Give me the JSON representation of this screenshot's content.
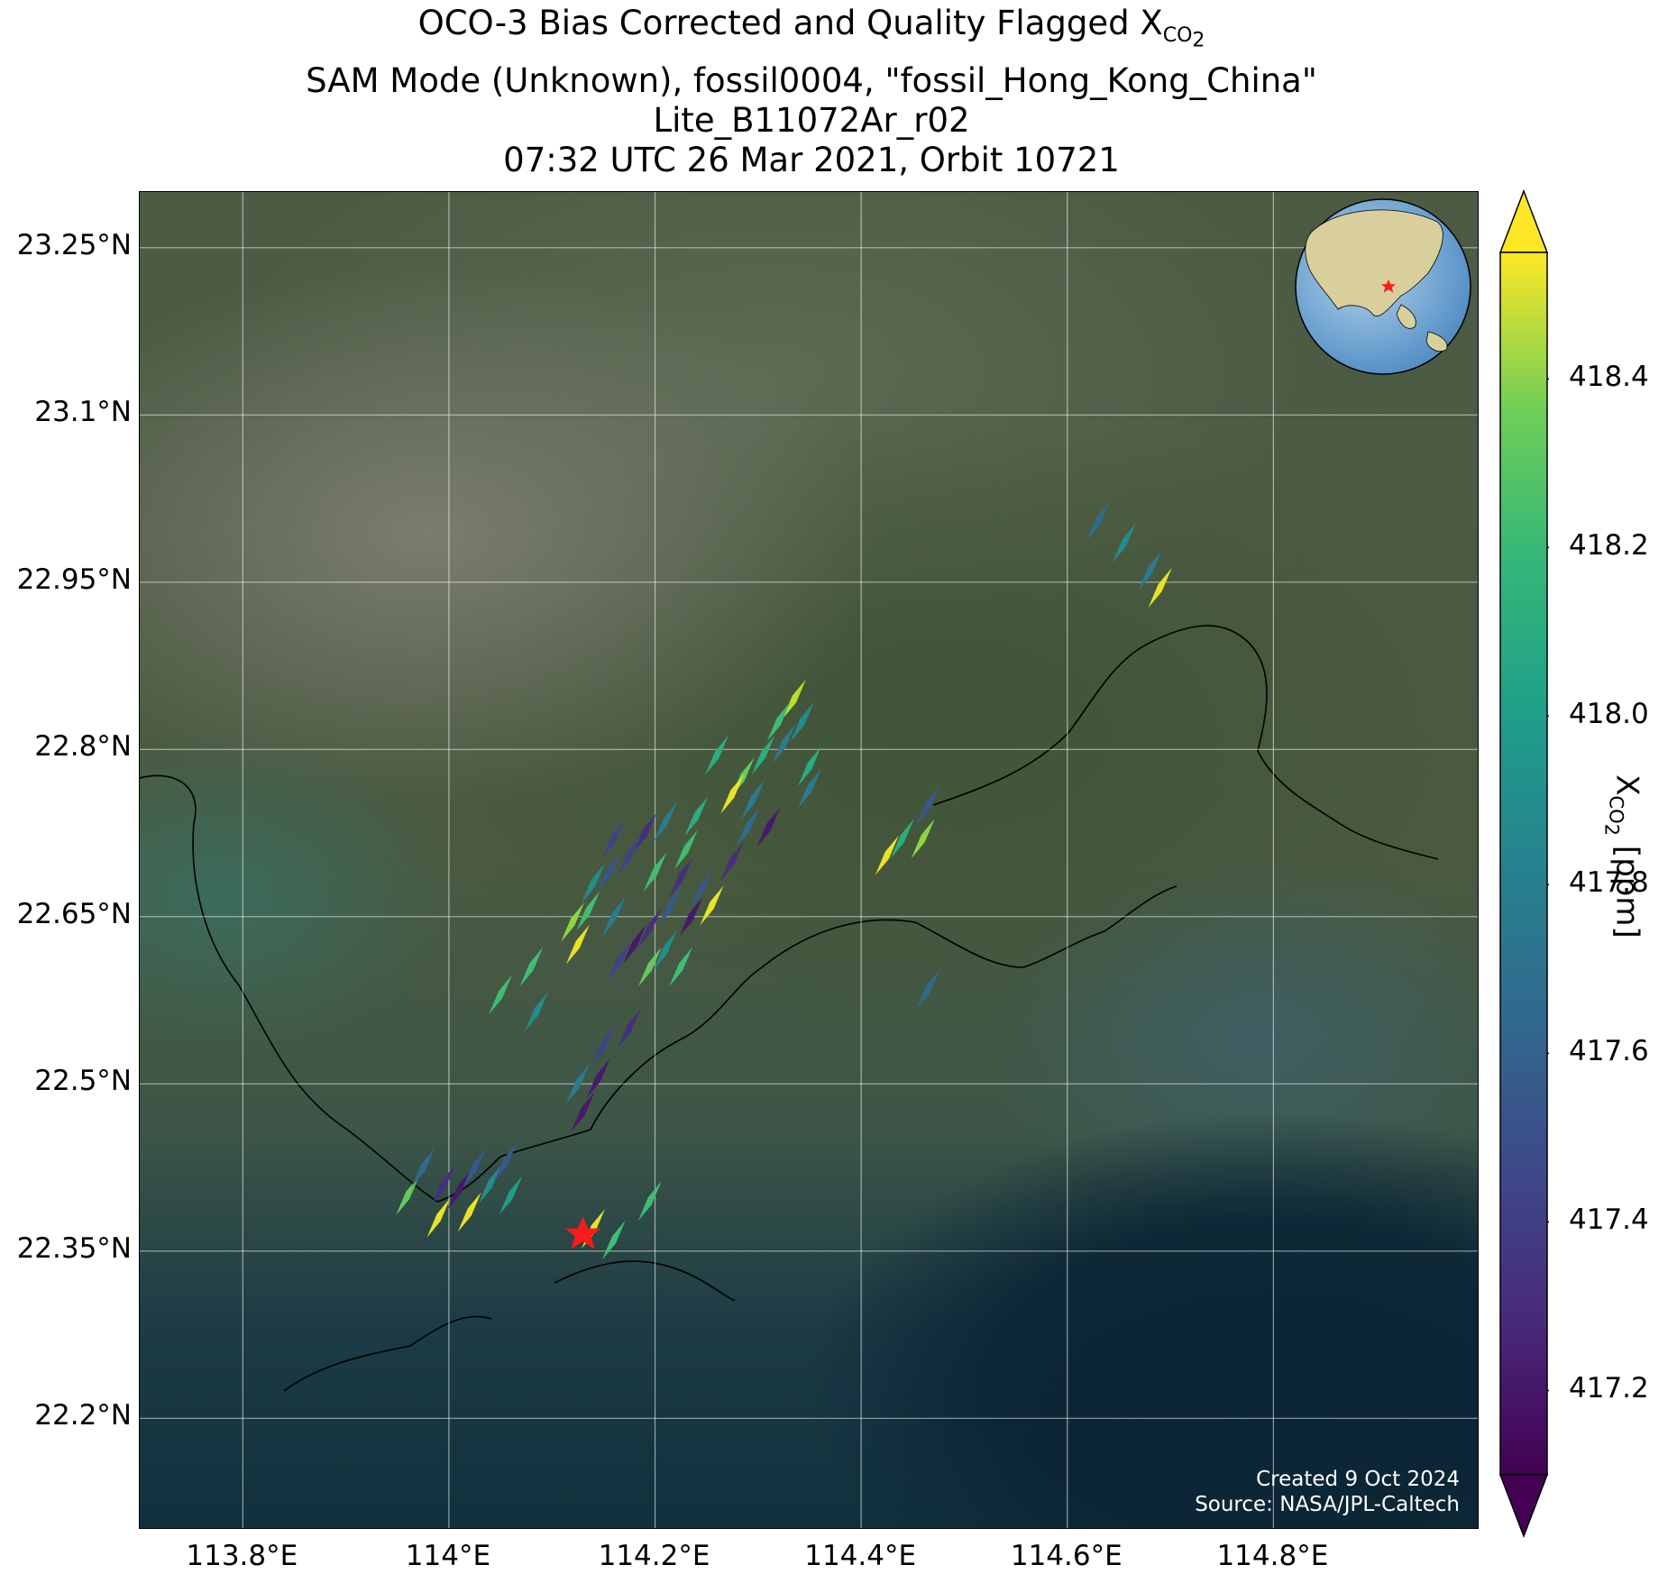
{
  "title": {
    "line1_prefix": "OCO-3 Bias Corrected and Quality Flagged X",
    "line1_sub": "CO",
    "line1_sub2": "2",
    "line2": "SAM Mode (Unknown), fossil0004, \"fossil_Hong_Kong_China\"",
    "line3": "Lite_B11072Ar_r02",
    "line4": "07:32 UTC 26 Mar 2021, Orbit 10721"
  },
  "axes": {
    "lon_range": [
      113.7,
      115.0
    ],
    "lat_range": [
      22.1,
      23.3
    ],
    "xticks": [
      "113.8°E",
      "114°E",
      "114.2°E",
      "114.4°E",
      "114.6°E",
      "114.8°E"
    ],
    "xtick_values": [
      113.8,
      114.0,
      114.2,
      114.4,
      114.6,
      114.8
    ],
    "yticks": [
      "23.25°N",
      "23.1°N",
      "22.95°N",
      "22.8°N",
      "22.65°N",
      "22.5°N",
      "22.35°N",
      "22.2°N"
    ],
    "ytick_values": [
      23.25,
      23.1,
      22.95,
      22.8,
      22.65,
      22.5,
      22.35,
      22.2
    ]
  },
  "target": {
    "name": "fossil_Hong_Kong_China",
    "lon": 114.13,
    "lat": 22.365,
    "marker": "red-star"
  },
  "colorbar": {
    "label_prefix": "X",
    "label_sub": "CO",
    "label_sub2": "2",
    "label_suffix": " [ppm]",
    "range": [
      417.1,
      418.55
    ],
    "ticks": [
      "418.4",
      "418.2",
      "418.0",
      "417.8",
      "417.6",
      "417.4",
      "417.2"
    ],
    "tick_values": [
      418.4,
      418.2,
      418.0,
      417.8,
      417.6,
      417.4,
      417.2
    ],
    "colormap": "viridis",
    "extend": "both"
  },
  "credits": {
    "line1": "Created 9 Oct 2024",
    "line2": "Source: NASA/JPL-Caltech"
  },
  "inset": {
    "type": "globe",
    "marker": "red-star"
  },
  "soundings": [
    {
      "lon": 114.335,
      "lat": 22.845,
      "v": 418.4
    },
    {
      "lon": 114.32,
      "lat": 22.825,
      "v": 418.1
    },
    {
      "lon": 114.343,
      "lat": 22.825,
      "v": 417.8
    },
    {
      "lon": 114.325,
      "lat": 22.805,
      "v": 417.7
    },
    {
      "lon": 114.305,
      "lat": 22.795,
      "v": 418.0
    },
    {
      "lon": 114.35,
      "lat": 22.785,
      "v": 418.0
    },
    {
      "lon": 114.35,
      "lat": 22.765,
      "v": 417.7
    },
    {
      "lon": 114.31,
      "lat": 22.73,
      "v": 417.2
    },
    {
      "lon": 114.285,
      "lat": 22.775,
      "v": 418.2
    },
    {
      "lon": 114.275,
      "lat": 22.76,
      "v": 418.5
    },
    {
      "lon": 114.26,
      "lat": 22.795,
      "v": 418.0
    },
    {
      "lon": 114.295,
      "lat": 22.755,
      "v": 417.7
    },
    {
      "lon": 114.29,
      "lat": 22.73,
      "v": 417.6
    },
    {
      "lon": 114.275,
      "lat": 22.7,
      "v": 417.3
    },
    {
      "lon": 114.255,
      "lat": 22.66,
      "v": 418.5
    },
    {
      "lon": 114.24,
      "lat": 22.74,
      "v": 418.0
    },
    {
      "lon": 114.23,
      "lat": 22.71,
      "v": 418.1
    },
    {
      "lon": 114.21,
      "lat": 22.735,
      "v": 417.7
    },
    {
      "lon": 114.19,
      "lat": 22.725,
      "v": 417.3
    },
    {
      "lon": 114.175,
      "lat": 22.705,
      "v": 417.4
    },
    {
      "lon": 114.155,
      "lat": 22.69,
      "v": 417.5
    },
    {
      "lon": 114.16,
      "lat": 22.72,
      "v": 417.4
    },
    {
      "lon": 114.14,
      "lat": 22.68,
      "v": 417.8
    },
    {
      "lon": 114.135,
      "lat": 22.655,
      "v": 418.1
    },
    {
      "lon": 114.125,
      "lat": 22.625,
      "v": 418.5
    },
    {
      "lon": 114.12,
      "lat": 22.645,
      "v": 418.3
    },
    {
      "lon": 114.16,
      "lat": 22.65,
      "v": 417.7
    },
    {
      "lon": 114.2,
      "lat": 22.69,
      "v": 418.1
    },
    {
      "lon": 114.225,
      "lat": 22.685,
      "v": 417.3
    },
    {
      "lon": 114.245,
      "lat": 22.675,
      "v": 417.5
    },
    {
      "lon": 114.215,
      "lat": 22.66,
      "v": 417.5
    },
    {
      "lon": 114.235,
      "lat": 22.65,
      "v": 417.2
    },
    {
      "lon": 114.195,
      "lat": 22.64,
      "v": 417.3
    },
    {
      "lon": 114.21,
      "lat": 22.62,
      "v": 417.8
    },
    {
      "lon": 114.18,
      "lat": 22.625,
      "v": 417.2
    },
    {
      "lon": 114.165,
      "lat": 22.61,
      "v": 417.4
    },
    {
      "lon": 114.195,
      "lat": 22.605,
      "v": 418.2
    },
    {
      "lon": 114.225,
      "lat": 22.605,
      "v": 418.1
    },
    {
      "lon": 114.08,
      "lat": 22.605,
      "v": 418.1
    },
    {
      "lon": 114.05,
      "lat": 22.58,
      "v": 418.1
    },
    {
      "lon": 114.085,
      "lat": 22.565,
      "v": 417.8
    },
    {
      "lon": 114.175,
      "lat": 22.55,
      "v": 417.3
    },
    {
      "lon": 114.15,
      "lat": 22.535,
      "v": 417.4
    },
    {
      "lon": 114.145,
      "lat": 22.505,
      "v": 417.2
    },
    {
      "lon": 114.125,
      "lat": 22.5,
      "v": 417.7
    },
    {
      "lon": 114.13,
      "lat": 22.475,
      "v": 417.2
    },
    {
      "lon": 113.96,
      "lat": 22.4,
      "v": 418.2
    },
    {
      "lon": 113.975,
      "lat": 22.425,
      "v": 417.6
    },
    {
      "lon": 113.99,
      "lat": 22.38,
      "v": 418.5
    },
    {
      "lon": 113.995,
      "lat": 22.41,
      "v": 417.3
    },
    {
      "lon": 114.01,
      "lat": 22.405,
      "v": 417.2
    },
    {
      "lon": 114.02,
      "lat": 22.385,
      "v": 418.5
    },
    {
      "lon": 114.025,
      "lat": 22.425,
      "v": 417.5
    },
    {
      "lon": 114.04,
      "lat": 22.41,
      "v": 417.8
    },
    {
      "lon": 114.055,
      "lat": 22.43,
      "v": 417.5
    },
    {
      "lon": 114.06,
      "lat": 22.4,
      "v": 417.9
    },
    {
      "lon": 114.14,
      "lat": 22.37,
      "v": 418.5
    },
    {
      "lon": 114.16,
      "lat": 22.36,
      "v": 418.1
    },
    {
      "lon": 114.195,
      "lat": 22.395,
      "v": 418.1
    },
    {
      "lon": 114.425,
      "lat": 22.705,
      "v": 418.5
    },
    {
      "lon": 114.44,
      "lat": 22.72,
      "v": 418.0
    },
    {
      "lon": 114.46,
      "lat": 22.72,
      "v": 418.3
    },
    {
      "lon": 114.465,
      "lat": 22.75,
      "v": 417.5
    },
    {
      "lon": 114.465,
      "lat": 22.585,
      "v": 417.6
    },
    {
      "lon": 114.63,
      "lat": 23.005,
      "v": 417.6
    },
    {
      "lon": 114.655,
      "lat": 22.985,
      "v": 417.8
    },
    {
      "lon": 114.68,
      "lat": 22.96,
      "v": 417.7
    },
    {
      "lon": 114.69,
      "lat": 22.945,
      "v": 418.5
    }
  ]
}
